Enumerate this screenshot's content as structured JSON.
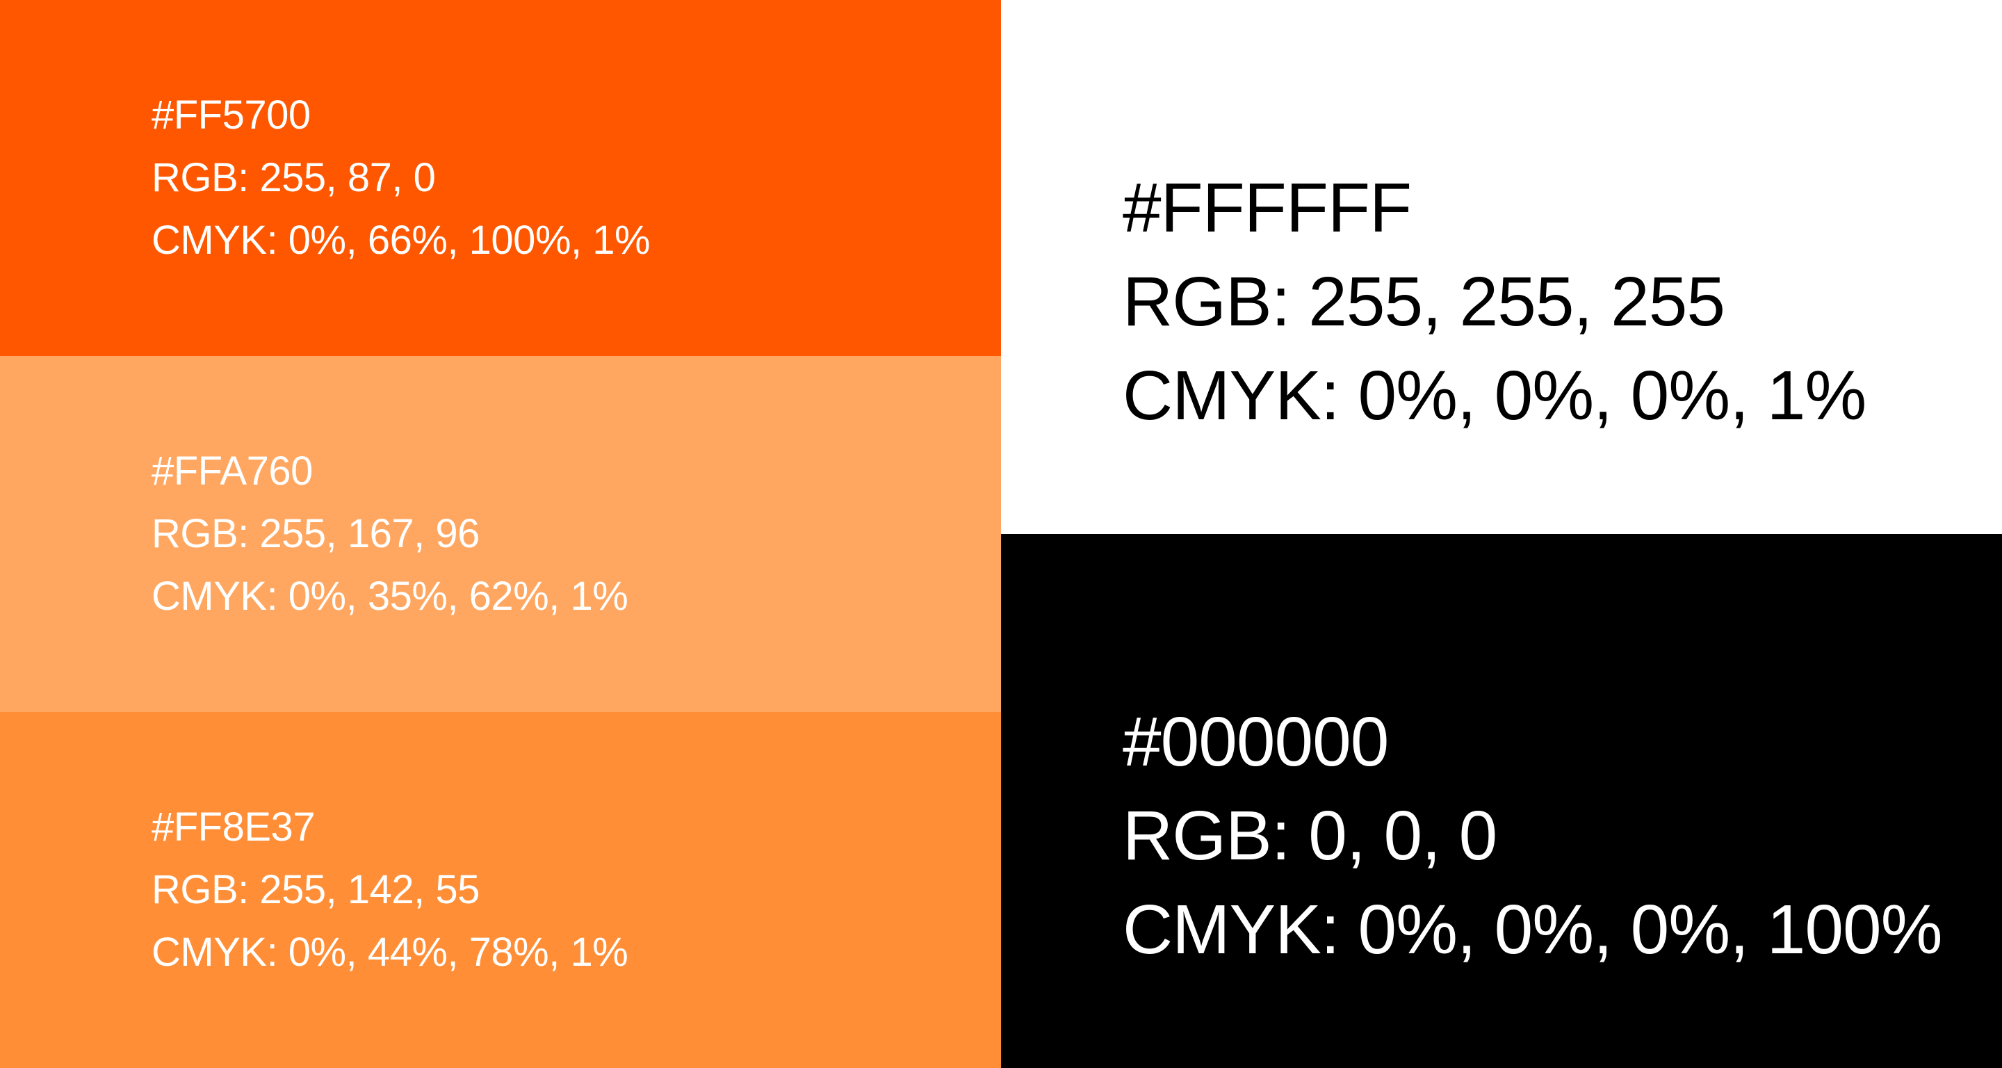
{
  "palette": {
    "swatches": [
      {
        "background": "#FF5700",
        "text_color": "#FFFFFF",
        "hex": "#FF5700",
        "rgb": "RGB: 255, 87, 0",
        "cmyk": "CMYK: 0%, 66%, 100%, 1%"
      },
      {
        "background": "#FFA760",
        "text_color": "#FFFFFF",
        "hex": "#FFA760",
        "rgb": "RGB: 255, 167, 96",
        "cmyk": "CMYK: 0%, 35%, 62%, 1%"
      },
      {
        "background": "#FF8E37",
        "text_color": "#FFFFFF",
        "hex": "#FF8E37",
        "rgb": "RGB: 255, 142, 55",
        "cmyk": "CMYK: 0%, 44%, 78%, 1%"
      },
      {
        "background": "#FFFFFF",
        "text_color": "#000000",
        "hex": "#FFFFFF",
        "rgb": "RGB: 255, 255, 255",
        "cmyk": "CMYK: 0%, 0%, 0%, 1%"
      },
      {
        "background": "#000000",
        "text_color": "#FFFFFF",
        "hex": "#000000",
        "rgb": "RGB: 0, 0, 0",
        "cmyk": "CMYK: 0%, 0%, 0%, 100%"
      }
    ]
  }
}
